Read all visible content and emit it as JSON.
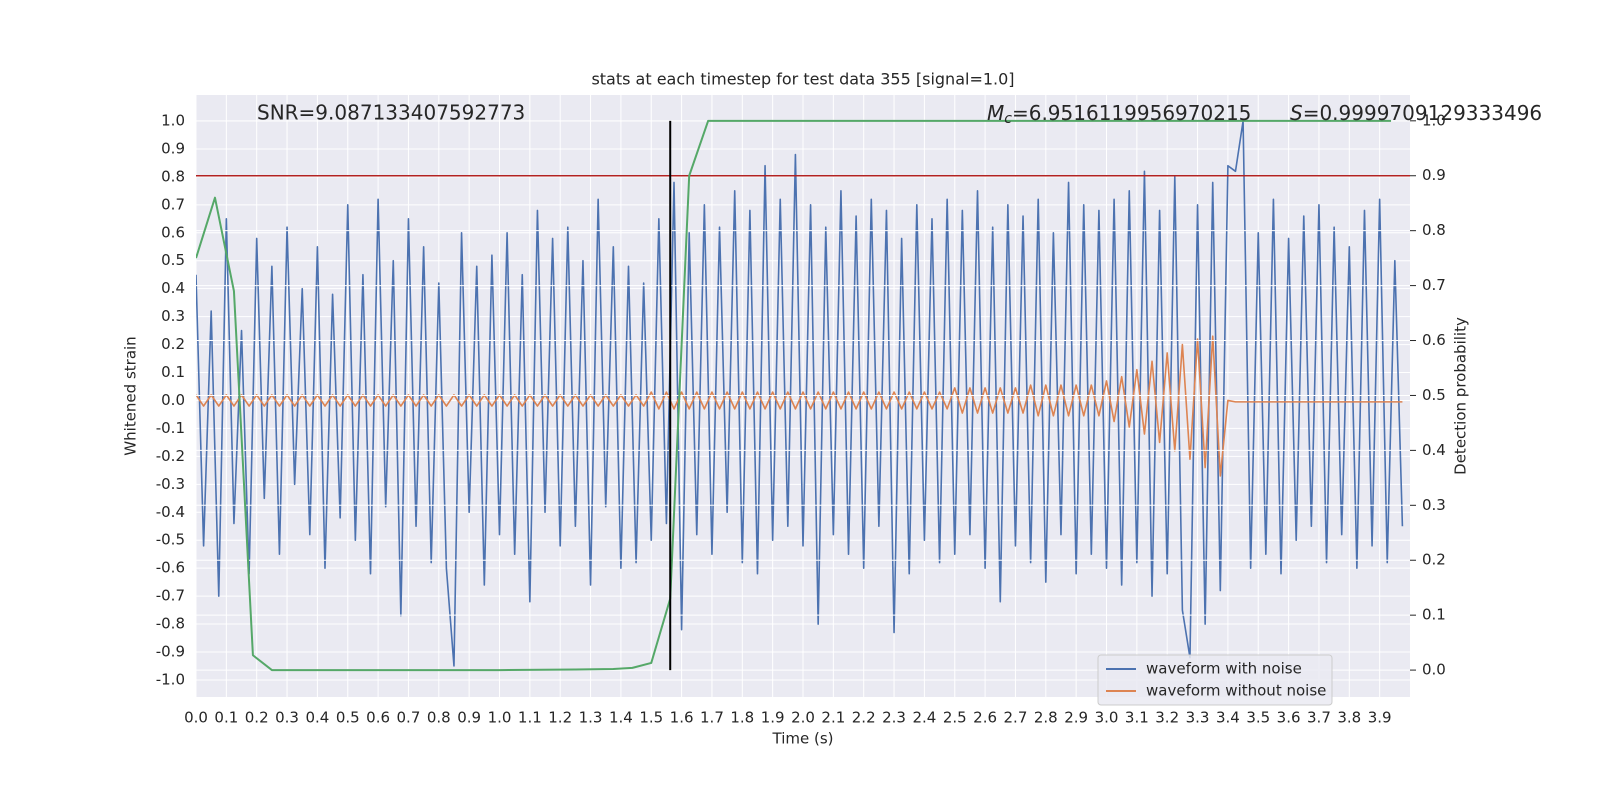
{
  "chart_data": {
    "type": "line",
    "title": "stats at each timestep for test data 355 [signal=1.0]",
    "x_label": "Time (s)",
    "y_label": "Whitened strain",
    "y2_label": "Detection probability",
    "annotations": {
      "snr": "SNR=9.087133407592773",
      "mc": {
        "symbol": "M",
        "subscript": "c",
        "text": "=6.9516119956970215"
      },
      "s": {
        "symbol": "S",
        "text": "=0.9999709129333496"
      }
    },
    "x": [
      0,
      0.025,
      0.05,
      0.075,
      0.1,
      0.125,
      0.15,
      0.175,
      0.2,
      0.225,
      0.25,
      0.275,
      0.3,
      0.325,
      0.35,
      0.375,
      0.4,
      0.425,
      0.45,
      0.475,
      0.5,
      0.525,
      0.55,
      0.575,
      0.6,
      0.625,
      0.65,
      0.675,
      0.7,
      0.725,
      0.75,
      0.775,
      0.8,
      0.825,
      0.85,
      0.875,
      0.9,
      0.925,
      0.95,
      0.975,
      1,
      1.025,
      1.05,
      1.075,
      1.1,
      1.125,
      1.15,
      1.175,
      1.2,
      1.225,
      1.25,
      1.275,
      1.3,
      1.325,
      1.35,
      1.375,
      1.4,
      1.425,
      1.45,
      1.475,
      1.5,
      1.525,
      1.55,
      1.575,
      1.6,
      1.625,
      1.65,
      1.675,
      1.7,
      1.725,
      1.75,
      1.775,
      1.8,
      1.825,
      1.85,
      1.875,
      1.9,
      1.925,
      1.95,
      1.975,
      2,
      2.025,
      2.05,
      2.075,
      2.1,
      2.125,
      2.15,
      2.175,
      2.2,
      2.225,
      2.25,
      2.275,
      2.3,
      2.325,
      2.35,
      2.375,
      2.4,
      2.425,
      2.45,
      2.475,
      2.5,
      2.525,
      2.55,
      2.575,
      2.6,
      2.625,
      2.65,
      2.675,
      2.7,
      2.725,
      2.75,
      2.775,
      2.8,
      2.825,
      2.85,
      2.875,
      2.9,
      2.925,
      2.95,
      2.975,
      3,
      3.025,
      3.05,
      3.075,
      3.1,
      3.125,
      3.15,
      3.175,
      3.2,
      3.225,
      3.25,
      3.275,
      3.3,
      3.325,
      3.35,
      3.375,
      3.4,
      3.425,
      3.45,
      3.475,
      3.5,
      3.525,
      3.55,
      3.575,
      3.6,
      3.625,
      3.65,
      3.675,
      3.7,
      3.725,
      3.75,
      3.775,
      3.8,
      3.825,
      3.85,
      3.875,
      3.9,
      3.925,
      3.95,
      3.975
    ],
    "series": [
      {
        "name": "waveform with noise",
        "color": "#4c72b0",
        "values": [
          0.45,
          -0.52,
          0.32,
          -0.7,
          0.65,
          -0.44,
          0.25,
          -0.62,
          0.58,
          -0.35,
          0.48,
          -0.55,
          0.62,
          -0.3,
          0.4,
          -0.48,
          0.55,
          -0.6,
          0.38,
          -0.42,
          0.7,
          -0.5,
          0.45,
          -0.62,
          0.72,
          -0.38,
          0.5,
          -0.77,
          0.65,
          -0.45,
          0.55,
          -0.58,
          0.42,
          -0.6,
          -0.95,
          0.6,
          -0.4,
          0.48,
          -0.66,
          0.52,
          -0.48,
          0.6,
          -0.55,
          0.45,
          -0.72,
          0.68,
          -0.4,
          0.58,
          -0.52,
          0.62,
          -0.45,
          0.5,
          -0.66,
          0.72,
          -0.38,
          0.55,
          -0.6,
          0.48,
          -0.58,
          0.42,
          -0.5,
          0.65,
          -0.44,
          0.78,
          -0.82,
          0.6,
          -0.48,
          0.7,
          -0.55,
          0.62,
          -0.4,
          0.75,
          -0.58,
          0.68,
          -0.62,
          0.84,
          -0.5,
          0.72,
          -0.45,
          0.88,
          -0.52,
          0.7,
          -0.8,
          0.62,
          -0.48,
          0.75,
          -0.55,
          0.66,
          -0.6,
          0.72,
          -0.45,
          0.68,
          -0.83,
          0.58,
          -0.62,
          0.7,
          -0.5,
          0.65,
          -0.58,
          0.72,
          -0.55,
          0.68,
          -0.48,
          0.75,
          -0.6,
          0.62,
          -0.72,
          0.7,
          -0.52,
          0.66,
          -0.58,
          0.72,
          -0.65,
          0.6,
          -0.48,
          0.78,
          -0.62,
          0.7,
          -0.55,
          0.68,
          -0.6,
          0.72,
          -0.66,
          0.75,
          -0.58,
          0.82,
          -0.7,
          0.68,
          -0.62,
          0.8,
          -0.75,
          -0.92,
          0.7,
          -0.8,
          0.78,
          -0.68,
          0.84,
          0.82,
          1.0,
          -0.6,
          0.6,
          -0.55,
          0.72,
          -0.62,
          0.58,
          -0.5,
          0.66,
          -0.45,
          0.7,
          -0.58,
          0.62,
          -0.48,
          0.55,
          -0.6,
          0.68,
          -0.52,
          0.72,
          -0.58,
          0.5,
          -0.45
        ]
      },
      {
        "name": "waveform without noise",
        "color": "#dd8452",
        "values": [
          0.02,
          -0.02,
          0.02,
          -0.02,
          0.02,
          -0.02,
          0.02,
          -0.02,
          0.02,
          -0.02,
          0.02,
          -0.02,
          0.02,
          -0.02,
          0.02,
          -0.02,
          0.02,
          -0.02,
          0.02,
          -0.02,
          0.02,
          -0.02,
          0.02,
          -0.02,
          0.02,
          -0.02,
          0.02,
          -0.02,
          0.02,
          -0.02,
          0.02,
          -0.02,
          0.02,
          -0.02,
          0.02,
          -0.02,
          0.02,
          -0.02,
          0.02,
          -0.02,
          0.02,
          -0.02,
          0.02,
          -0.02,
          0.02,
          -0.02,
          0.02,
          -0.02,
          0.02,
          -0.02,
          0.02,
          -0.02,
          0.02,
          -0.02,
          0.02,
          -0.02,
          0.02,
          -0.02,
          0.02,
          -0.02,
          0.03,
          -0.03,
          0.03,
          -0.03,
          0.03,
          -0.03,
          0.03,
          -0.03,
          0.03,
          -0.03,
          0.03,
          -0.03,
          0.03,
          -0.03,
          0.03,
          -0.03,
          0.03,
          -0.03,
          0.03,
          -0.03,
          0.03,
          -0.03,
          0.03,
          -0.03,
          0.03,
          -0.03,
          0.03,
          -0.03,
          0.03,
          -0.03,
          0.03,
          -0.03,
          0.03,
          -0.03,
          0.03,
          -0.03,
          0.03,
          -0.03,
          0.03,
          -0.03,
          0.045,
          -0.045,
          0.045,
          -0.045,
          0.045,
          -0.045,
          0.045,
          -0.045,
          0.045,
          -0.045,
          0.055,
          -0.055,
          0.055,
          -0.055,
          0.055,
          -0.055,
          0.055,
          -0.055,
          0.055,
          -0.055,
          0.07,
          -0.075,
          0.085,
          -0.095,
          0.11,
          -0.12,
          0.14,
          -0.15,
          0.17,
          -0.18,
          0.2,
          -0.21,
          0.22,
          -0.24,
          0.23,
          -0.27,
          0,
          -0.005,
          -0.005,
          -0.005,
          -0.005,
          -0.005,
          -0.005,
          -0.005,
          -0.005,
          -0.005,
          -0.005,
          -0.005,
          -0.005,
          -0.005,
          -0.005,
          -0.005,
          -0.005,
          -0.005,
          -0.005,
          -0.005,
          -0.005,
          -0.005,
          -0.005,
          -0.005
        ]
      },
      {
        "color": "#55a868",
        "axis": "y2",
        "x": [
          0,
          0.0625,
          0.125,
          0.1875,
          0.25,
          0.5,
          0.75,
          1,
          1.25,
          1.375,
          1.4375,
          1.5,
          1.5625,
          1.625,
          1.6875,
          2,
          2.5,
          3,
          3.5,
          3.9375
        ],
        "values": [
          0.75,
          0.86,
          0.69,
          0.027,
          0,
          0,
          0,
          0,
          0.001,
          0.002,
          0.004,
          0.013,
          0.13,
          0.9,
          1,
          1,
          1,
          1,
          1,
          1
        ]
      }
    ],
    "threshold": {
      "value": 0.9,
      "axis": "y2",
      "color": "#b22222"
    },
    "vline": {
      "x": 1.5625,
      "ymin": 0,
      "ymax": 1,
      "axis": "y2",
      "color": "#000000"
    },
    "xlim": [
      0,
      4.0
    ],
    "ylim": [
      -1.061,
      1.093
    ],
    "y2lim": [
      -0.049,
      1.047
    ],
    "xticks": [
      {
        "value": 0,
        "label": "0.0"
      },
      0.1,
      0.2,
      0.3,
      0.4,
      0.5,
      0.6,
      0.7,
      0.8,
      0.9,
      {
        "value": 1,
        "label": "1.0"
      },
      1.1,
      1.2,
      1.3,
      1.4,
      1.5,
      1.6,
      1.7,
      1.8,
      1.9,
      {
        "value": 2,
        "label": "2.0"
      },
      2.1,
      2.2,
      2.3,
      2.4,
      2.5,
      2.6,
      2.7,
      2.8,
      2.9,
      {
        "value": 3,
        "label": "3.0"
      },
      3.1,
      3.2,
      3.3,
      3.4,
      3.5,
      3.6,
      3.7,
      3.8,
      3.9
    ],
    "yticks": [
      {
        "value": -1,
        "label": "-1.0"
      },
      -0.9,
      -0.8,
      -0.7,
      -0.6,
      -0.5,
      -0.4,
      -0.3,
      -0.2,
      -0.1,
      {
        "value": 0,
        "label": "0.0"
      },
      0.1,
      0.2,
      0.3,
      0.4,
      0.5,
      0.6,
      0.7,
      0.8,
      0.9,
      {
        "value": 1,
        "label": "1.0"
      }
    ],
    "y2ticks": [
      {
        "value": 0,
        "label": "0.0"
      },
      0.1,
      0.2,
      0.3,
      0.4,
      0.5,
      0.6,
      0.7,
      0.8,
      0.9,
      {
        "value": 1,
        "label": "1.0"
      }
    ],
    "grid": true,
    "legend": "lower right"
  }
}
